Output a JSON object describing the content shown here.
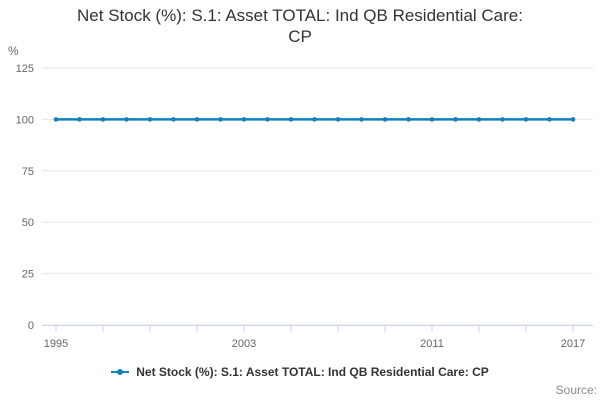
{
  "chart_data": {
    "type": "line",
    "title": "Net Stock (%): S.1: Asset TOTAL: Ind QB Residential Care: CP",
    "title_lines": [
      "Net Stock (%): S.1: Asset TOTAL: Ind QB Residential Care:",
      "CP"
    ],
    "xlabel": "",
    "ylabel": "%",
    "ylim": [
      0,
      125
    ],
    "yticks": [
      0,
      25,
      50,
      75,
      100,
      125
    ],
    "xlim": [
      1995,
      2017
    ],
    "xticks": [
      1995,
      1997,
      1999,
      2001,
      2003,
      2005,
      2007,
      2009,
      2011,
      2013,
      2015,
      2017
    ],
    "xtick_labels": [
      1995,
      2003,
      2011,
      2017
    ],
    "grid": true,
    "legend_position": "bottom",
    "series": [
      {
        "name": "Net Stock (%): S.1: Asset TOTAL: Ind QB Residential Care: CP",
        "color": "#1380be",
        "x": [
          1995,
          1996,
          1997,
          1998,
          1999,
          2000,
          2001,
          2002,
          2003,
          2004,
          2005,
          2006,
          2007,
          2008,
          2009,
          2010,
          2011,
          2012,
          2013,
          2014,
          2015,
          2016,
          2017
        ],
        "values": [
          100,
          100,
          100,
          100,
          100,
          100,
          100,
          100,
          100,
          100,
          100,
          100,
          100,
          100,
          100,
          100,
          100,
          100,
          100,
          100,
          100,
          100,
          100
        ]
      }
    ]
  },
  "colors": {
    "accent": "#1380be",
    "grid": "#e6e6e6",
    "axis": "#ccd6eb",
    "title_text": "#333333",
    "tick_text": "#666666",
    "source_text": "#8a8a8a"
  },
  "legend": {
    "label": "Net Stock (%): S.1: Asset TOTAL: Ind QB Residential Care: CP"
  },
  "source": {
    "label": "Source:"
  }
}
